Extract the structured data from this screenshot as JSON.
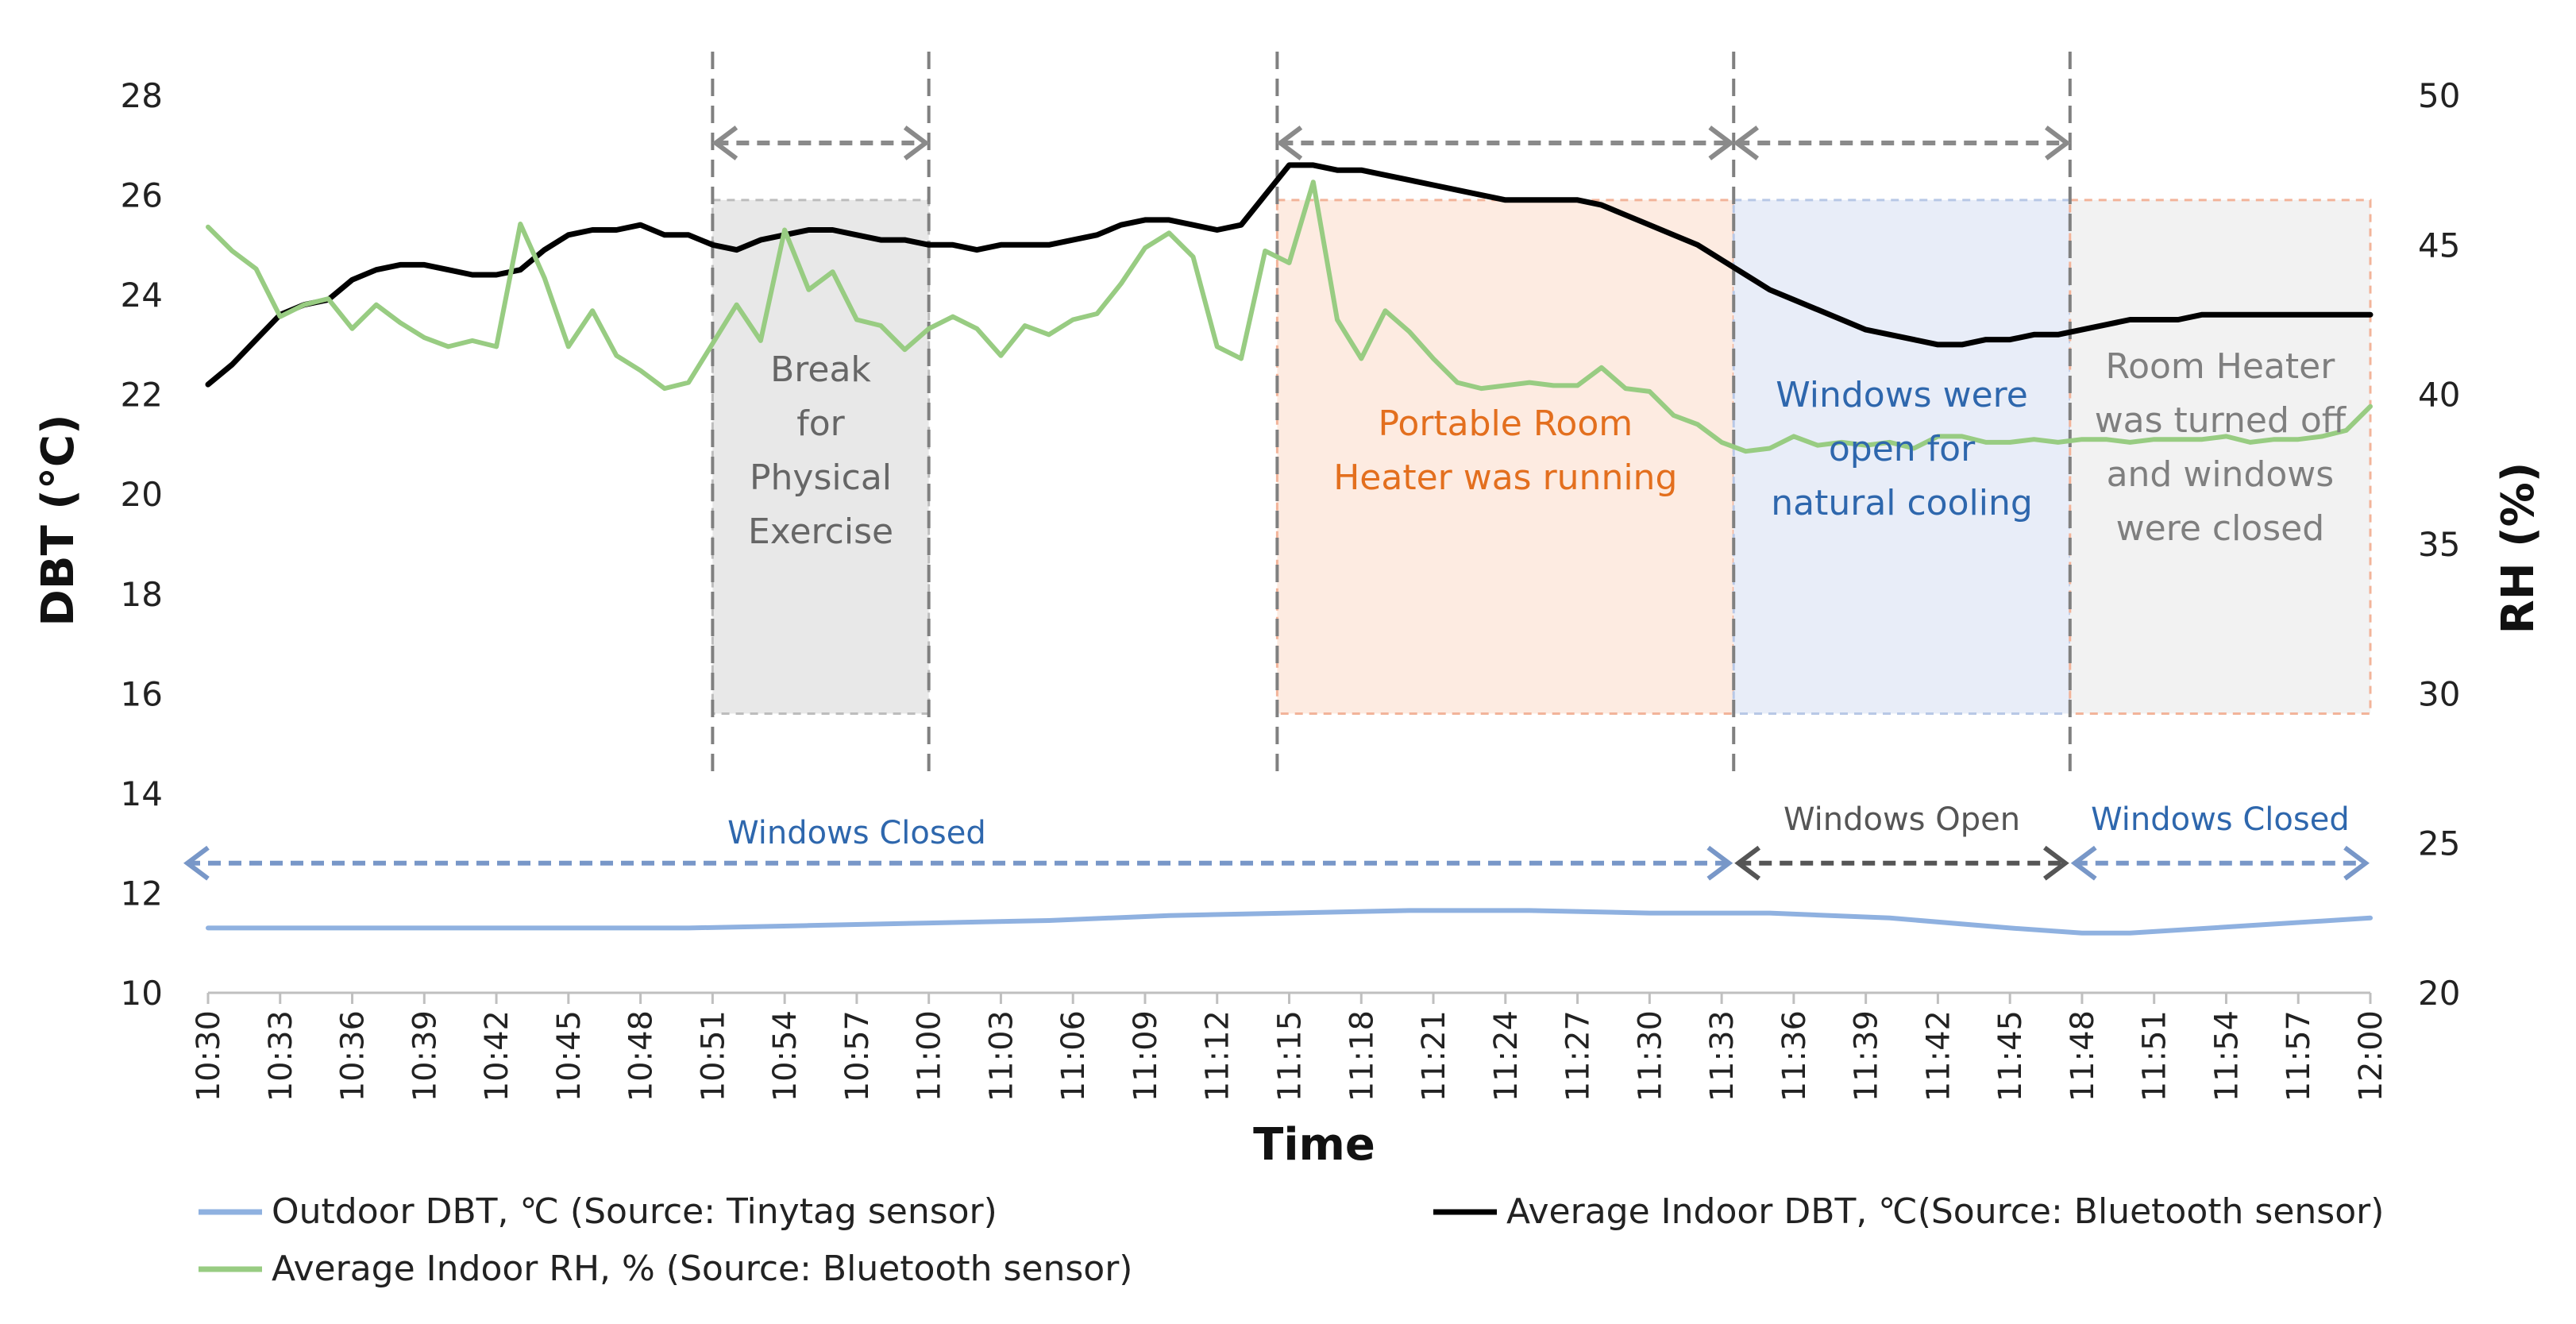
{
  "chart_data": {
    "type": "line",
    "xlabel": "Time",
    "ylabel_left": "DBT (°C)",
    "ylabel_right": "RH (%)",
    "ylim_left": [
      10,
      28
    ],
    "yticks_left": [
      10,
      12,
      14,
      16,
      18,
      20,
      22,
      24,
      26,
      28
    ],
    "ylim_right": [
      20,
      50
    ],
    "yticks_right": [
      20,
      25,
      30,
      35,
      40,
      45,
      50
    ],
    "x_start_minutes": 630,
    "x_end_minutes": 720,
    "x_ticks": [
      "10:30",
      "10:33",
      "10:36",
      "10:39",
      "10:42",
      "10:45",
      "10:48",
      "10:51",
      "10:54",
      "10:57",
      "11:00",
      "11:03",
      "11:06",
      "11:09",
      "11:12",
      "11:15",
      "11:18",
      "11:21",
      "11:24",
      "11:27",
      "11:30",
      "11:33",
      "11:36",
      "11:39",
      "11:42",
      "11:45",
      "11:48",
      "11:51",
      "11:54",
      "11:57",
      "12:00"
    ],
    "series": [
      {
        "name": "Outdoor DBT, ℃  (Source: Tinytag sensor)",
        "axis": "left",
        "color": "#8fb1e0",
        "x": [
          0,
          5,
          10,
          15,
          20,
          25,
          30,
          35,
          40,
          45,
          50,
          55,
          60,
          65,
          70,
          75,
          78,
          80,
          85,
          90
        ],
        "y": [
          11.3,
          11.3,
          11.3,
          11.3,
          11.3,
          11.35,
          11.4,
          11.45,
          11.55,
          11.6,
          11.65,
          11.65,
          11.6,
          11.6,
          11.5,
          11.3,
          11.2,
          11.2,
          11.35,
          11.5
        ]
      },
      {
        "name": "Average Indoor DBT, ℃(Source: Bluetooth sensor)",
        "axis": "left",
        "color": "#000000",
        "x": [
          0,
          1,
          2,
          3,
          4,
          5,
          6,
          7,
          8,
          9,
          10,
          11,
          12,
          13,
          14,
          15,
          16,
          17,
          18,
          19,
          20,
          21,
          22,
          23,
          24,
          25,
          26,
          27,
          28,
          29,
          30,
          31,
          32,
          33,
          34,
          35,
          36,
          37,
          38,
          39,
          40,
          41,
          42,
          43,
          44,
          45,
          46,
          47,
          48,
          49,
          50,
          51,
          52,
          53,
          54,
          55,
          56,
          57,
          58,
          59,
          60,
          61,
          62,
          63,
          64,
          65,
          66,
          67,
          68,
          69,
          70,
          71,
          72,
          73,
          74,
          75,
          76,
          77,
          78,
          79,
          80,
          81,
          82,
          83,
          84,
          85,
          86,
          87,
          88,
          89,
          90
        ],
        "y": [
          22.2,
          22.6,
          23.1,
          23.6,
          23.8,
          23.9,
          24.3,
          24.5,
          24.6,
          24.6,
          24.5,
          24.4,
          24.4,
          24.5,
          24.9,
          25.2,
          25.3,
          25.3,
          25.4,
          25.2,
          25.2,
          25.0,
          24.9,
          25.1,
          25.2,
          25.3,
          25.3,
          25.2,
          25.1,
          25.1,
          25.0,
          25.0,
          24.9,
          25.0,
          25.0,
          25.0,
          25.1,
          25.2,
          25.4,
          25.5,
          25.5,
          25.4,
          25.3,
          25.4,
          26.0,
          26.6,
          26.6,
          26.5,
          26.5,
          26.4,
          26.3,
          26.2,
          26.1,
          26.0,
          25.9,
          25.9,
          25.9,
          25.9,
          25.8,
          25.6,
          25.4,
          25.2,
          25.0,
          24.7,
          24.4,
          24.1,
          23.9,
          23.7,
          23.5,
          23.3,
          23.2,
          23.1,
          23.0,
          23.0,
          23.1,
          23.1,
          23.2,
          23.2,
          23.3,
          23.4,
          23.5,
          23.5,
          23.5,
          23.6,
          23.6,
          23.6,
          23.6,
          23.6,
          23.6,
          23.6,
          23.6
        ]
      },
      {
        "name": "Average Indoor RH, % (Source: Bluetooth sensor)",
        "axis": "right",
        "color": "#98cc82",
        "x": [
          0,
          1,
          2,
          3,
          4,
          5,
          6,
          7,
          8,
          9,
          10,
          11,
          12,
          13,
          14,
          15,
          16,
          17,
          18,
          19,
          20,
          21,
          22,
          23,
          24,
          25,
          26,
          27,
          28,
          29,
          30,
          31,
          32,
          33,
          34,
          35,
          36,
          37,
          38,
          39,
          40,
          41,
          42,
          43,
          44,
          45,
          46,
          47,
          48,
          49,
          50,
          51,
          52,
          53,
          54,
          55,
          56,
          57,
          58,
          59,
          60,
          61,
          62,
          63,
          64,
          65,
          66,
          67,
          68,
          69,
          70,
          71,
          72,
          73,
          74,
          75,
          76,
          77,
          78,
          79,
          80,
          81,
          82,
          83,
          84,
          85,
          86,
          87,
          88,
          89,
          90
        ],
        "y": [
          45.6,
          44.8,
          44.2,
          42.6,
          43.0,
          43.2,
          42.2,
          43.0,
          42.4,
          41.9,
          41.6,
          41.8,
          41.6,
          45.7,
          43.9,
          41.6,
          42.8,
          41.3,
          40.8,
          40.2,
          40.4,
          41.7,
          43.0,
          41.8,
          45.5,
          43.5,
          44.1,
          42.5,
          42.3,
          41.5,
          42.2,
          42.6,
          42.2,
          41.3,
          42.3,
          42.0,
          42.5,
          42.7,
          43.7,
          44.9,
          45.4,
          44.6,
          41.6,
          41.2,
          44.8,
          44.4,
          47.1,
          42.5,
          41.2,
          42.8,
          42.1,
          41.2,
          40.4,
          40.2,
          40.3,
          40.4,
          40.3,
          40.3,
          40.9,
          40.2,
          40.1,
          39.3,
          39.0,
          38.4,
          38.1,
          38.2,
          38.6,
          38.3,
          38.4,
          38.3,
          38.4,
          38.2,
          38.6,
          38.6,
          38.4,
          38.4,
          38.5,
          38.4,
          38.5,
          38.5,
          38.4,
          38.5,
          38.5,
          38.5,
          38.6,
          38.4,
          38.5,
          38.5,
          38.6,
          38.8,
          39.6
        ]
      }
    ],
    "shaded_regions": [
      {
        "start": 21,
        "end": 30,
        "label_lines": [
          "Break",
          "for",
          "Physical",
          "Exercise"
        ],
        "fill": "#e8e8e8",
        "stroke": "#bdbdbd",
        "text_color": "#666666"
      },
      {
        "start": 44.5,
        "end": 63.5,
        "label_lines": [
          "Portable Room",
          "Heater was running"
        ],
        "fill": "#fdebe1",
        "stroke": "#f2b49a",
        "text_color": "#e36f1e"
      },
      {
        "start": 63.5,
        "end": 77.5,
        "label_lines": [
          "Windows were",
          "open for",
          "natural cooling"
        ],
        "fill": "#e8edf8",
        "stroke": "#b8c8e6",
        "text_color": "#2e67ad"
      },
      {
        "start": 77.5,
        "end": 90,
        "label_lines": [
          "Room Heater",
          "was  turned off",
          "and windows",
          "were closed"
        ],
        "fill": "#f2f2f2",
        "stroke": "#f2b49a",
        "text_color": "#7f7f7f"
      }
    ],
    "vertical_markers": [
      21,
      30,
      44.5,
      63.5,
      77.5
    ],
    "top_arrows": [
      [
        21,
        30
      ],
      [
        44.5,
        63.5
      ],
      [
        63.5,
        77.5
      ]
    ],
    "window_bands": [
      {
        "start": 0,
        "end": 63.5,
        "label": "Windows Closed",
        "color": "#7897c8",
        "text_color": "#2e67ad"
      },
      {
        "start": 63.5,
        "end": 77.5,
        "label": "Windows Open",
        "color": "#555555",
        "text_color": "#555555"
      },
      {
        "start": 77.5,
        "end": 90,
        "label": "Windows Closed",
        "color": "#7897c8",
        "text_color": "#2e67ad"
      }
    ],
    "legend": [
      {
        "label": "Outdoor DBT, ℃  (Source: Tinytag sensor)",
        "color": "#8fb1e0"
      },
      {
        "label": "Average Indoor DBT, ℃(Source: Bluetooth sensor)",
        "color": "#000000"
      },
      {
        "label": "Average Indoor RH, % (Source: Bluetooth sensor)",
        "color": "#98cc82"
      }
    ]
  }
}
